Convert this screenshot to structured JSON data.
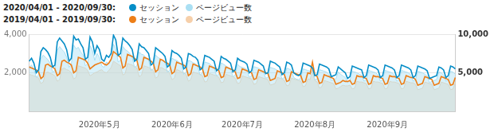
{
  "chart_data": {
    "type": "line",
    "legend": "top-left",
    "grid": true,
    "categories": [
      null,
      null,
      null,
      null,
      null,
      null,
      null,
      null,
      null,
      null,
      null,
      null,
      null,
      null,
      null,
      null,
      null,
      null,
      null,
      null,
      null,
      null,
      null,
      null,
      null,
      null,
      null,
      null,
      null,
      null,
      "2020年5月",
      null,
      null,
      null,
      null,
      null,
      null,
      null,
      null,
      null,
      null,
      null,
      null,
      null,
      null,
      null,
      null,
      null,
      null,
      null,
      null,
      null,
      null,
      null,
      null,
      null,
      null,
      null,
      null,
      null,
      null,
      "2020年6月",
      null,
      null,
      null,
      null,
      null,
      null,
      null,
      null,
      null,
      null,
      null,
      null,
      null,
      null,
      null,
      null,
      null,
      null,
      null,
      null,
      null,
      null,
      null,
      null,
      null,
      null,
      null,
      null,
      null,
      "2020年7月",
      null,
      null,
      null,
      null,
      null,
      null,
      null,
      null,
      null,
      null,
      null,
      null,
      null,
      null,
      null,
      null,
      null,
      null,
      null,
      null,
      null,
      null,
      null,
      null,
      null,
      null,
      null,
      null,
      null,
      null,
      "2020年8月",
      null,
      null,
      null,
      null,
      null,
      null,
      null,
      null,
      null,
      null,
      null,
      null,
      null,
      null,
      null,
      null,
      null,
      null,
      null,
      null,
      null,
      null,
      null,
      null,
      null,
      null,
      null,
      null,
      null,
      null,
      "2020年9月",
      null,
      null,
      null,
      null,
      null,
      null,
      null,
      null,
      null,
      null,
      null,
      null,
      null,
      null,
      null,
      null,
      null,
      null,
      null,
      null,
      null,
      null,
      null,
      null,
      null,
      null,
      null,
      null,
      null
    ],
    "ylim": [
      0,
      4000
    ],
    "yticks": [
      {
        "value": 2000,
        "label": "2,000"
      },
      {
        "value": 4000,
        "label": "4,000"
      }
    ],
    "y2lim": [
      0,
      10000
    ],
    "y2ticks": [
      {
        "value": 5000,
        "label": "5,000"
      },
      {
        "value": 10000,
        "label": "10,000"
      }
    ],
    "series": [
      {
        "name": "セッション",
        "period": "2020/04/01 - 2020/09/30:",
        "type": "line",
        "color": "#058dc7",
        "values": [
          2600,
          2750,
          2500,
          2000,
          2150,
          3100,
          3300,
          3200,
          3050,
          2800,
          2300,
          2400,
          3600,
          3800,
          3650,
          3500,
          3200,
          2600,
          2750,
          3900,
          3700,
          3750,
          3500,
          3300,
          2700,
          2800,
          3850,
          3600,
          3000,
          3400,
          3200,
          2700,
          2600,
          2900,
          2800,
          3000,
          3950,
          3700,
          2900,
          3000,
          3800,
          3650,
          3550,
          3400,
          3200,
          2600,
          2700,
          3500,
          3350,
          3300,
          3150,
          3000,
          2400,
          2500,
          3300,
          3200,
          3100,
          3000,
          2850,
          2300,
          2400,
          3150,
          3050,
          3000,
          2900,
          2750,
          2200,
          2300,
          3000,
          2950,
          2850,
          2800,
          2650,
          2150,
          2250,
          2900,
          2850,
          2800,
          2700,
          2600,
          2100,
          2200,
          2850,
          2750,
          2700,
          2600,
          2500,
          2050,
          2150,
          2750,
          2650,
          2600,
          2550,
          2450,
          2000,
          2100,
          2650,
          2600,
          2550,
          2450,
          2350,
          1950,
          2000,
          2600,
          2550,
          2500,
          2400,
          2300,
          1900,
          2000,
          2550,
          2500,
          2400,
          2000,
          1900,
          1850,
          1950,
          2500,
          2450,
          2400,
          2350,
          2250,
          1850,
          1900,
          2450,
          2400,
          2350,
          2300,
          2200,
          1800,
          1850,
          1900,
          2300,
          2200,
          2100,
          2000,
          1700,
          1800,
          2350,
          2300,
          2250,
          2200,
          2150,
          1750,
          1850,
          2400,
          2350,
          2300,
          2250,
          2150,
          1750,
          1850,
          2400,
          2350,
          2300,
          2250,
          2150,
          1750,
          1850,
          2400,
          2350,
          2300,
          2250,
          2150,
          1750,
          1850,
          2350,
          2300,
          2250,
          2200,
          2100,
          1700,
          1750,
          1800,
          1850,
          2300,
          2250,
          2150,
          1750,
          1850,
          2350,
          2300,
          2200
        ]
      },
      {
        "name": "ページビュー数",
        "period": "2020/04/01 - 2020/09/30:",
        "type": "area",
        "axis": "y2",
        "color": "#aadff3",
        "values": [
          5700,
          6000,
          5500,
          4400,
          4700,
          6800,
          7300,
          7000,
          6700,
          6200,
          5100,
          5300,
          7900,
          8400,
          8000,
          7700,
          7000,
          5700,
          6100,
          8600,
          8100,
          8300,
          7700,
          7300,
          5900,
          6200,
          8500,
          7900,
          6600,
          7500,
          7000,
          5900,
          5700,
          6400,
          6200,
          6600,
          8700,
          8100,
          6400,
          6600,
          8400,
          8000,
          7800,
          7500,
          7000,
          5700,
          5900,
          7700,
          7400,
          7300,
          6900,
          6600,
          5300,
          5500,
          7300,
          7000,
          6800,
          6600,
          6300,
          5100,
          5300,
          6900,
          6700,
          6600,
          6400,
          6100,
          4800,
          5100,
          6600,
          6500,
          6300,
          6200,
          5800,
          4700,
          5000,
          6400,
          6300,
          6200,
          5900,
          5700,
          4600,
          4800,
          6300,
          6100,
          5900,
          5700,
          5500,
          4500,
          4700,
          6100,
          5800,
          5700,
          5600,
          5400,
          4400,
          4600,
          5800,
          5700,
          5600,
          5400,
          5200,
          4300,
          4400,
          5700,
          5600,
          5500,
          5300,
          5100,
          4200,
          4400,
          5600,
          5500,
          5300,
          4400,
          4200,
          4100,
          4300,
          5500,
          5400,
          5300,
          5200,
          5000,
          4100,
          4200,
          5400,
          5300,
          5200,
          5100,
          4800,
          4000,
          4100,
          4200,
          5100,
          4800,
          4600,
          4400,
          3700,
          4000,
          5200,
          5100,
          5000,
          4800,
          4700,
          3900,
          4100,
          5300,
          5200,
          5100,
          5000,
          4700,
          3900,
          4100,
          5300,
          5200,
          5100,
          5000,
          4700,
          3900,
          4100,
          5300,
          5200,
          5100,
          5000,
          4700,
          3900,
          4100,
          5200,
          5100,
          5000,
          4800,
          4600,
          3700,
          3900,
          4000,
          4100,
          5100,
          5000,
          4700,
          3900,
          4100,
          5200,
          5100,
          4800
        ]
      },
      {
        "name": "セッション",
        "period": "2019/04/01 - 2019/09/30:",
        "type": "line",
        "color": "#ed7e17",
        "values": [
          2300,
          2250,
          2200,
          2150,
          2050,
          1700,
          1800,
          2400,
          2450,
          2350,
          2300,
          2200,
          1850,
          1950,
          2600,
          2650,
          2550,
          2500,
          2400,
          2000,
          2100,
          2800,
          2750,
          2700,
          2650,
          2500,
          2200,
          2300,
          2400,
          2450,
          2500,
          2550,
          2450,
          2400,
          2500,
          2700,
          3100,
          3000,
          2900,
          2800,
          2250,
          2350,
          2950,
          2900,
          2850,
          2750,
          2650,
          2150,
          2250,
          2800,
          2750,
          2700,
          2600,
          2500,
          2050,
          2150,
          2700,
          2650,
          2550,
          2500,
          2400,
          1950,
          2050,
          2550,
          2500,
          2450,
          2400,
          2300,
          1850,
          1950,
          2450,
          2400,
          2350,
          2300,
          2200,
          1800,
          1850,
          2350,
          2300,
          2250,
          2200,
          2100,
          1750,
          1800,
          2300,
          2250,
          2200,
          2150,
          2050,
          1700,
          1750,
          2200,
          2150,
          2100,
          2050,
          2000,
          1650,
          1700,
          2150,
          2100,
          2050,
          2000,
          1950,
          1600,
          1650,
          1700,
          2100,
          2050,
          2000,
          1900,
          1550,
          1600,
          2050,
          2000,
          1950,
          1900,
          1850,
          1500,
          1550,
          2000,
          1950,
          2550,
          1900,
          1800,
          1450,
          1500,
          1900,
          1850,
          1800,
          1750,
          1700,
          1400,
          1450,
          1500,
          1600,
          1550,
          1550,
          1600,
          1400,
          1450,
          1850,
          1800,
          1800,
          1750,
          1700,
          1400,
          1450,
          1850,
          1800,
          1800,
          1750,
          1700,
          1400,
          1450,
          1850,
          1800,
          1800,
          1750,
          1700,
          1400,
          1450,
          1850,
          1800,
          1750,
          1750,
          1650,
          1350,
          1400,
          1450,
          1800,
          1750,
          1700,
          1650,
          1350,
          1400,
          1450,
          1800,
          1750,
          1700,
          1650,
          1350,
          1400,
          1750
        ]
      },
      {
        "name": "ページビュー数",
        "period": "2019/04/01 - 2019/09/30:",
        "type": "area",
        "axis": "y2",
        "color": "#f6cfa9",
        "values": [
          4800,
          4700,
          4600,
          4500,
          4300,
          3600,
          3800,
          5000,
          5100,
          4900,
          4800,
          4600,
          3900,
          4100,
          5500,
          5600,
          5400,
          5300,
          5000,
          4200,
          4400,
          5900,
          5800,
          5700,
          5600,
          5300,
          4600,
          4800,
          5000,
          5100,
          5300,
          5400,
          5100,
          5000,
          5300,
          5700,
          6500,
          6300,
          6100,
          5900,
          4700,
          4900,
          6200,
          6100,
          6000,
          5800,
          5600,
          4500,
          4700,
          5900,
          5800,
          5700,
          5500,
          5300,
          4300,
          4500,
          5700,
          5600,
          5400,
          5300,
          5000,
          4100,
          4300,
          5400,
          5300,
          5100,
          5000,
          4800,
          3900,
          4100,
          5100,
          5000,
          4900,
          4800,
          4600,
          3800,
          3900,
          4900,
          4800,
          4700,
          4600,
          4400,
          3700,
          3800,
          4800,
          4700,
          4600,
          4500,
          4300,
          3600,
          3700,
          4600,
          4500,
          4400,
          4300,
          4200,
          3500,
          3600,
          4500,
          4400,
          4300,
          4200,
          4100,
          3400,
          3500,
          3600,
          4400,
          4300,
          4200,
          4000,
          3300,
          3400,
          4300,
          4200,
          4100,
          4000,
          3900,
          3200,
          3300,
          4200,
          4100,
          5400,
          4000,
          3800,
          3000,
          3200,
          4000,
          3900,
          3800,
          3700,
          3600,
          2900,
          3000,
          3200,
          3400,
          3300,
          3300,
          3400,
          2900,
          3000,
          3900,
          3800,
          3800,
          3700,
          3600,
          2900,
          3000,
          3900,
          3800,
          3800,
          3700,
          3600,
          2900,
          3000,
          3900,
          3800,
          3800,
          3700,
          3600,
          2900,
          3000,
          3900,
          3800,
          3700,
          3700,
          3500,
          2800,
          2900,
          3000,
          3800,
          3700,
          3600,
          3500,
          2800,
          2900,
          3000,
          3800,
          3700,
          3600,
          3500,
          2800,
          2900,
          3700
        ]
      }
    ]
  }
}
